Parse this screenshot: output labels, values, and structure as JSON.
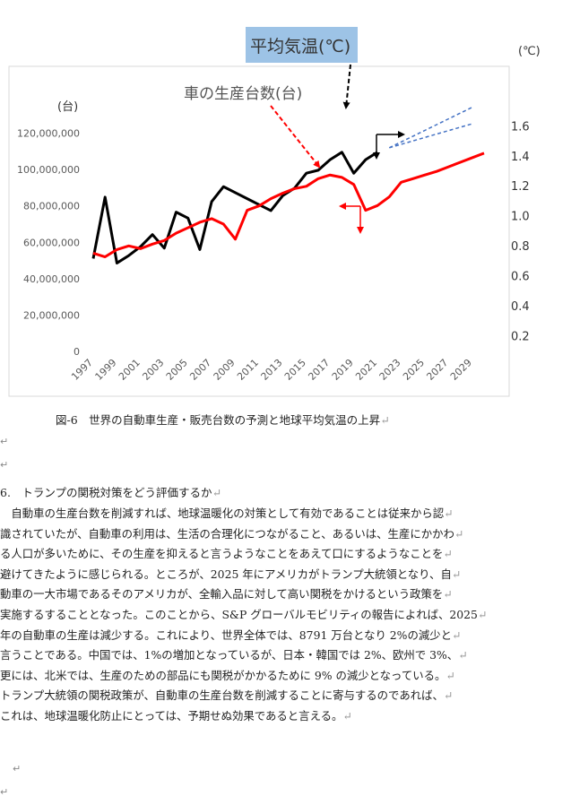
{
  "chart_data": {
    "type": "line",
    "left_axis_unit": "(台)",
    "right_axis_unit": "(℃)",
    "left_ticks": [
      "0",
      "20,000,000",
      "40,000,000",
      "60,000,000",
      "80,000,000",
      "100,000,000",
      "120,000,000"
    ],
    "left_tick_values": [
      0,
      20000000,
      40000000,
      60000000,
      80000000,
      100000000,
      120000000
    ],
    "right_ticks": [
      "0.2",
      "0.4",
      "0.6",
      "0.8",
      "1.0",
      "1.2",
      "1.4",
      "1.6"
    ],
    "right_tick_values": [
      0.2,
      0.4,
      0.6,
      0.8,
      1.0,
      1.2,
      1.4,
      1.6
    ],
    "x_labels": [
      "1997",
      "1999",
      "2001",
      "2003",
      "2005",
      "2007",
      "2009",
      "2011",
      "2013",
      "2015",
      "2017",
      "2019",
      "2021",
      "2023",
      "2025",
      "2027",
      "2029"
    ],
    "ylim_left": [
      0,
      140000000
    ],
    "ylim_right": [
      0.1,
      1.8
    ],
    "xlim": [
      1997,
      2030
    ],
    "series": [
      {
        "name": "平均気温(℃)",
        "axis": "right",
        "color": "#000000",
        "x": [
          1997,
          1998,
          1999,
          2000,
          2001,
          2002,
          2003,
          2004,
          2005,
          2006,
          2007,
          2008,
          2009,
          2010,
          2011,
          2012,
          2013,
          2014,
          2015,
          2016,
          2017,
          2018,
          2019,
          2020,
          2021
        ],
        "values": [
          0.72,
          1.13,
          0.69,
          0.74,
          0.8,
          0.88,
          0.79,
          1.03,
          0.99,
          0.78,
          1.1,
          1.2,
          1.16,
          1.12,
          1.08,
          1.04,
          1.14,
          1.19,
          1.29,
          1.31,
          1.38,
          1.43,
          1.29,
          1.38,
          1.43
        ]
      },
      {
        "name": "車の生産台数(台)",
        "axis": "left",
        "color": "#ff0000",
        "x": [
          1997,
          1998,
          1999,
          2000,
          2001,
          2002,
          2003,
          2004,
          2005,
          2006,
          2007,
          2008,
          2009,
          2010,
          2011,
          2012,
          2013,
          2014,
          2015,
          2016,
          2017,
          2018,
          2019,
          2020,
          2021,
          2022,
          2023,
          2024,
          2025,
          2026,
          2027,
          2028,
          2029,
          2030
        ],
        "values": [
          54000000,
          52000000,
          56000000,
          58000000,
          56500000,
          59000000,
          61000000,
          65000000,
          68000000,
          71000000,
          73000000,
          70000000,
          61700000,
          77600000,
          80000000,
          84000000,
          87000000,
          89500000,
          90800000,
          95000000,
          97000000,
          95700000,
          91800000,
          77600000,
          80200000,
          85000000,
          93000000,
          95000000,
          97000000,
          99000000,
          101500000,
          104000000,
          106500000,
          109000000
        ]
      }
    ],
    "projections": [
      {
        "axis": "right",
        "x": [
          2022,
          2029
        ],
        "values": [
          1.46,
          1.73
        ],
        "style": "dashed",
        "color": "#4472c4"
      },
      {
        "axis": "right",
        "x": [
          2022,
          2029
        ],
        "values": [
          1.46,
          1.62
        ],
        "style": "dashed",
        "color": "#4472c4"
      }
    ],
    "annotations": {
      "temp_label": "平均気温(℃)",
      "car_label": "車の生産台数(台)"
    }
  },
  "caption": "図-6　世界の自動車生産・販売台数の予測と地球平均気温の上昇",
  "return_mark": "↵",
  "section": {
    "heading": "6.　トランプの関税対策をどう評価するか",
    "lines": [
      "　自動車の生産台数を削減すれば、地球温暖化の対策として有効であることは従来から認",
      "識されていたが、自動車の利用は、生活の合理化につながること、あるいは、生産にかかわ",
      "る人口が多いために、その生産を抑えると言うようなことをあえて口にするようなことを",
      "避けてきたように感じられる。ところが、2025 年にアメリカがトランプ大統領となり、自",
      "動車の一大市場であるそのアメリカが、全輸入品に対して高い関税をかけるという政策を",
      "実施するすることとなった。このことから、S&P グローバルモビリティの報告によれば、2025",
      "年の自動車の生産は減少する。これにより、世界全体では、8791 万台となり 2%の減少と",
      "言うことである。中国では、1%の増加となっているが、日本・韓国では 2%、欧州で 3%、",
      "更には、北米では、生産のための部品にも関税がかかるために 9%  の減少となっている。",
      "トランプ大統領の関税政策が、自動車の生産台数を削減することに寄与するのであれば、",
      "これは、地球温暖化防止にとっては、予期せぬ効果であると言える。"
    ]
  }
}
